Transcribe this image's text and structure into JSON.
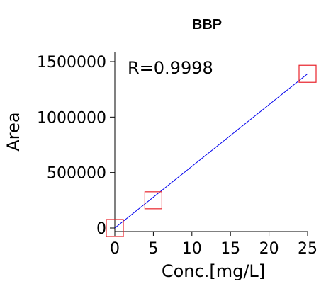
{
  "chart_data": {
    "type": "scatter",
    "title": "BBP",
    "xlabel": "Conc.[mg/L]",
    "ylabel": "Area",
    "xlim": [
      0,
      25
    ],
    "ylim": [
      0,
      1500000
    ],
    "x_ticks": [
      0,
      5,
      10,
      15,
      20,
      25
    ],
    "y_ticks": [
      0,
      500000,
      1000000,
      1500000
    ],
    "x_tick_labels": [
      "0",
      "5",
      "10",
      "15",
      "20",
      "25"
    ],
    "y_tick_labels": [
      "0",
      "500000",
      "1000000",
      "1500000"
    ],
    "series": [
      {
        "marker": "open-square",
        "color": "#e8222a",
        "x": [
          0,
          5,
          25
        ],
        "y": [
          0,
          250000,
          1390000
        ]
      }
    ],
    "fit_line": {
      "color": "#0000ee",
      "x": [
        0,
        25
      ],
      "y": [
        0,
        1390000
      ]
    },
    "annotation": "R=0.9998",
    "grid": false
  }
}
